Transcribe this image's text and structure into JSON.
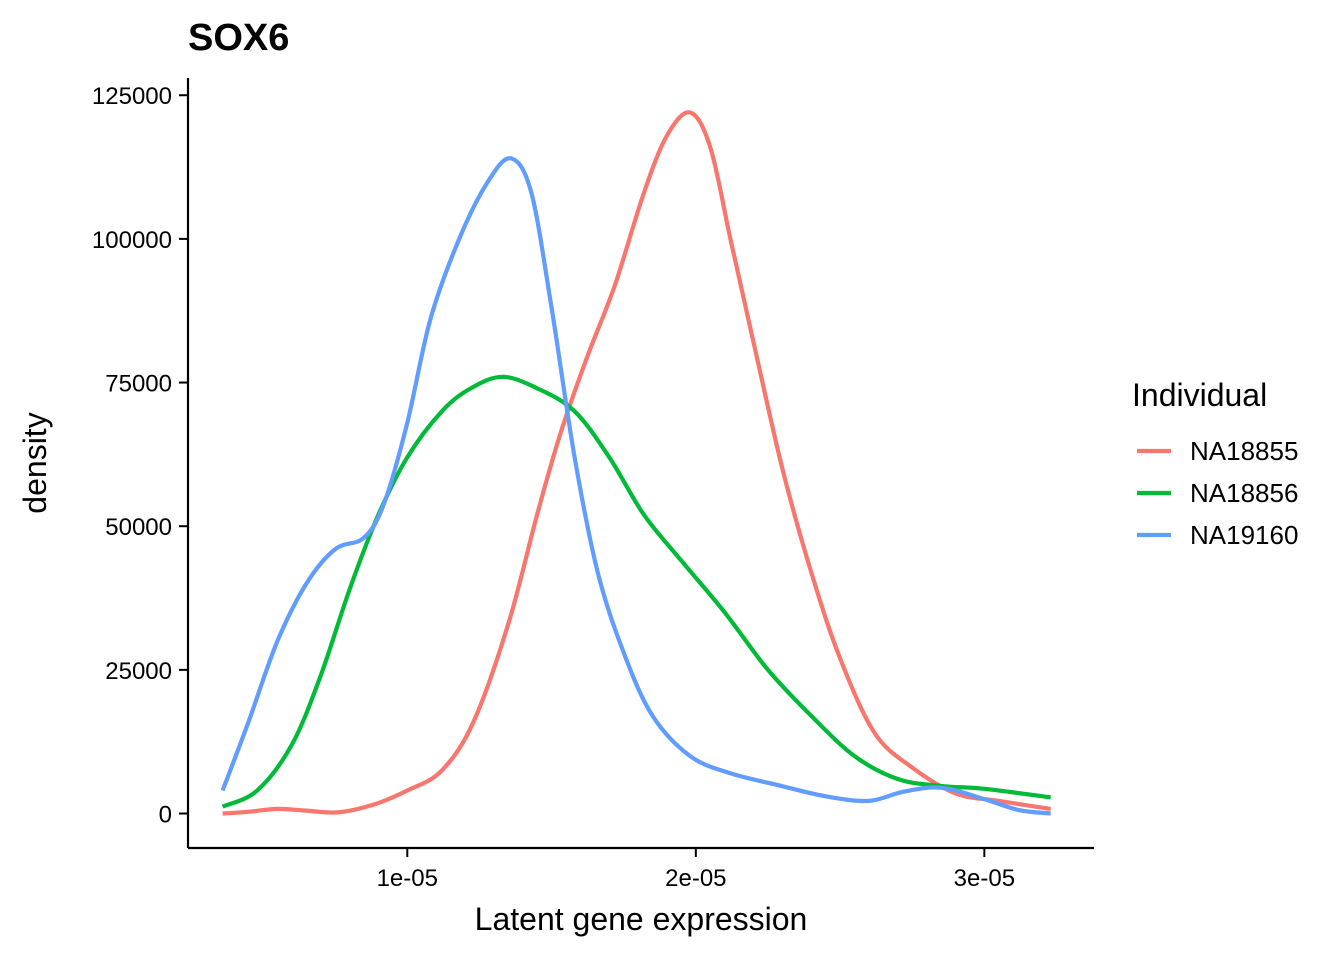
{
  "chart_data": {
    "type": "line",
    "title": "SOX6",
    "xlabel": "Latent gene expression",
    "ylabel": "density",
    "xlim": [
      2.4e-06,
      3.38e-05
    ],
    "ylim": [
      -6000,
      128000
    ],
    "x_ticks": [
      1e-05,
      2e-05,
      3e-05
    ],
    "x_tick_labels": [
      "1e-05",
      "2e-05",
      "3e-05"
    ],
    "y_ticks": [
      0,
      25000,
      50000,
      75000,
      100000,
      125000
    ],
    "y_tick_labels": [
      "0",
      "25000",
      "50000",
      "75000",
      "100000",
      "125000"
    ],
    "grid": false,
    "legend": {
      "title": "Individual",
      "position": "right"
    },
    "series": [
      {
        "name": "NA18855",
        "color": "#F8766D",
        "x": [
          3.6e-06,
          4.5e-06,
          5.5e-06,
          6.5e-06,
          7.6e-06,
          8.8e-06,
          1e-05,
          1.12e-05,
          1.23e-05,
          1.35e-05,
          1.45e-05,
          1.53e-05,
          1.62e-05,
          1.72e-05,
          1.82e-05,
          1.9e-05,
          1.98e-05,
          2.05e-05,
          2.12e-05,
          2.2e-05,
          2.3e-05,
          2.4e-05,
          2.5e-05,
          2.62e-05,
          2.75e-05,
          2.9e-05,
          3.05e-05,
          3.23e-05
        ],
        "y": [
          0,
          300,
          800,
          500,
          200,
          1500,
          4000,
          7500,
          16000,
          33000,
          52000,
          66000,
          79000,
          92000,
          108000,
          118000,
          122000,
          116000,
          100000,
          82000,
          60000,
          42000,
          27000,
          14000,
          8000,
          3500,
          2200,
          800
        ]
      },
      {
        "name": "NA18856",
        "color": "#00BA38",
        "x": [
          3.6e-06,
          4.8e-06,
          6e-06,
          7e-06,
          8e-06,
          9e-06,
          1e-05,
          1.12e-05,
          1.22e-05,
          1.33e-05,
          1.45e-05,
          1.58e-05,
          1.7e-05,
          1.82e-05,
          1.95e-05,
          2.1e-05,
          2.25e-05,
          2.4e-05,
          2.55e-05,
          2.7e-05,
          2.85e-05,
          3e-05,
          3.23e-05
        ],
        "y": [
          1200,
          4000,
          12000,
          24000,
          39000,
          52000,
          62000,
          70000,
          74000,
          76000,
          74000,
          70000,
          62000,
          52000,
          44000,
          35000,
          25000,
          17000,
          10000,
          6000,
          4800,
          4300,
          2800
        ]
      },
      {
        "name": "NA19160",
        "color": "#619CFF",
        "x": [
          3.6e-06,
          4.5e-06,
          5.5e-06,
          6.5e-06,
          7.5e-06,
          8.5e-06,
          9.2e-06,
          1e-05,
          1.08e-05,
          1.18e-05,
          1.28e-05,
          1.36e-05,
          1.43e-05,
          1.5e-05,
          1.58e-05,
          1.66e-05,
          1.75e-05,
          1.85e-05,
          1.98e-05,
          2.12e-05,
          2.28e-05,
          2.45e-05,
          2.6e-05,
          2.72e-05,
          2.85e-05,
          3e-05,
          3.12e-05,
          3.23e-05
        ],
        "y": [
          4000,
          16000,
          30000,
          40000,
          46000,
          48000,
          54000,
          68000,
          86000,
          100000,
          110000,
          114000,
          108000,
          88000,
          62000,
          42000,
          28000,
          17000,
          10000,
          7000,
          5000,
          3000,
          2200,
          3800,
          4500,
          2500,
          600,
          0
        ]
      }
    ]
  }
}
